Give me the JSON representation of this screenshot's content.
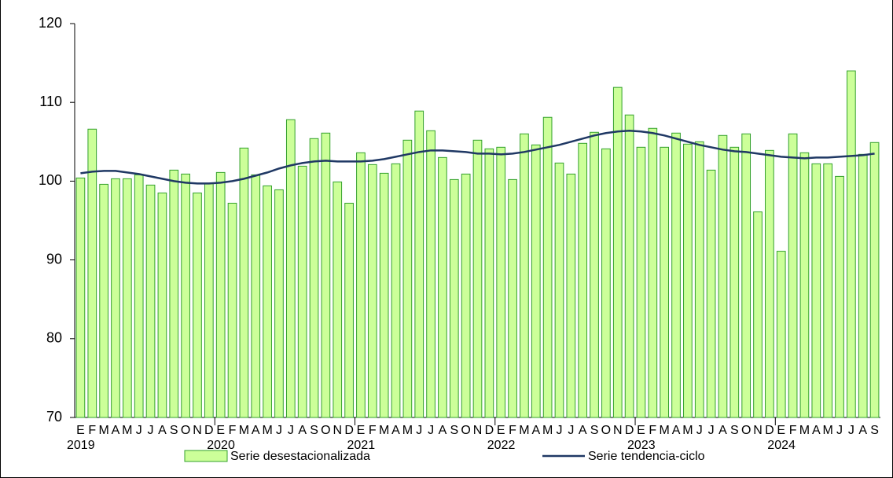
{
  "chart_data": {
    "type": "bar",
    "categories": [
      "E",
      "F",
      "M",
      "A",
      "M",
      "J",
      "J",
      "A",
      "S",
      "O",
      "N",
      "D",
      "E",
      "F",
      "M",
      "A",
      "M",
      "J",
      "J",
      "A",
      "S",
      "O",
      "N",
      "D",
      "E",
      "F",
      "M",
      "A",
      "M",
      "J",
      "J",
      "A",
      "S",
      "O",
      "N",
      "D",
      "E",
      "F",
      "M",
      "A",
      "M",
      "J",
      "J",
      "A",
      "S",
      "O",
      "N",
      "D",
      "E",
      "F",
      "M",
      "A",
      "M",
      "J",
      "J",
      "A",
      "S",
      "O",
      "N",
      "D",
      "E",
      "F",
      "M",
      "A",
      "M",
      "J",
      "J",
      "A",
      "S"
    ],
    "years": [
      "2019",
      "2020",
      "2021",
      "2022",
      "2023",
      "2024"
    ],
    "series": [
      {
        "name": "Serie desestacionalizada",
        "type": "bar",
        "color": "#ccff99",
        "edge": "#33a02c",
        "values": [
          100.4,
          106.6,
          99.6,
          100.3,
          100.3,
          100.8,
          99.5,
          98.5,
          101.4,
          100.9,
          98.5,
          99.7,
          101.1,
          97.2,
          104.2,
          100.8,
          99.4,
          98.9,
          107.8,
          101.9,
          105.4,
          106.1,
          99.9,
          97.2,
          103.6,
          102.1,
          101.0,
          102.2,
          105.2,
          108.9,
          106.4,
          103.0,
          100.2,
          100.9,
          105.2,
          104.1,
          104.3,
          100.2,
          106.0,
          104.6,
          108.1,
          102.3,
          100.9,
          104.8,
          106.2,
          104.1,
          111.9,
          108.4,
          104.3,
          106.7,
          104.3,
          106.1,
          104.7,
          105.0,
          101.4,
          105.8,
          104.3,
          106.0,
          96.1,
          103.9,
          91.1,
          106.0,
          103.6,
          102.2,
          102.2,
          100.6,
          114.0,
          103.4,
          104.9
        ]
      },
      {
        "name": "Serie tendencia-ciclo",
        "type": "line",
        "color": "#1f3864",
        "values": [
          101.0,
          101.2,
          101.3,
          101.3,
          101.1,
          100.9,
          100.6,
          100.3,
          100.0,
          99.8,
          99.7,
          99.7,
          99.8,
          100.0,
          100.3,
          100.7,
          101.1,
          101.6,
          102.0,
          102.3,
          102.5,
          102.6,
          102.5,
          102.5,
          102.5,
          102.6,
          102.8,
          103.1,
          103.4,
          103.7,
          103.9,
          103.9,
          103.8,
          103.7,
          103.5,
          103.5,
          103.4,
          103.5,
          103.7,
          104.0,
          104.3,
          104.6,
          105.0,
          105.4,
          105.8,
          106.1,
          106.3,
          106.4,
          106.3,
          106.1,
          105.8,
          105.4,
          105.0,
          104.6,
          104.3,
          104.0,
          103.8,
          103.7,
          103.5,
          103.3,
          103.1,
          103.0,
          102.9,
          103.0,
          103.0,
          103.1,
          103.2,
          103.3,
          103.5
        ]
      }
    ],
    "ylim": [
      70,
      120
    ],
    "yticks": [
      70,
      80,
      90,
      100,
      110,
      120
    ],
    "grid": false
  }
}
